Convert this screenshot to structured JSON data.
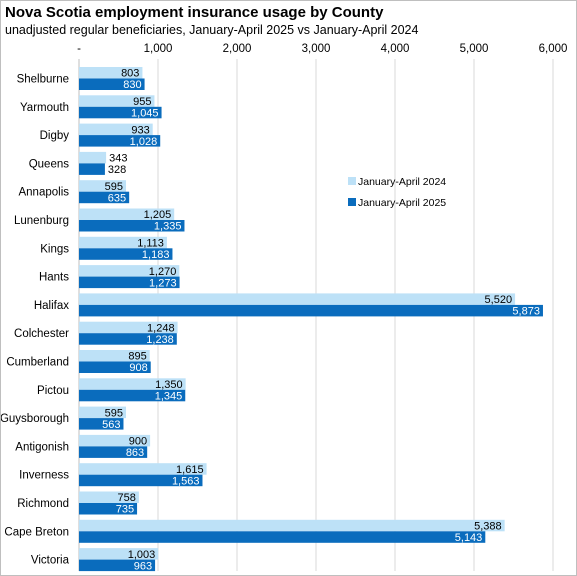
{
  "colors": {
    "series_2024": "#bde1f7",
    "series_2025": "#0a6cbd",
    "grid": "#d9d9d9",
    "label_on_dark": "#ffffff",
    "label_on_light": "#000000"
  },
  "chart_data": {
    "type": "bar",
    "orientation": "horizontal",
    "title": "Nova Scotia employment insurance usage by County",
    "subtitle": "unadjusted regular beneficiaries, January-April 2025 vs January-April 2024",
    "categories": [
      "Shelburne",
      "Yarmouth",
      "Digby",
      "Queens",
      "Annapolis",
      "Lunenburg",
      "Kings",
      "Hants",
      "Halifax",
      "Colchester",
      "Cumberland",
      "Pictou",
      "Guysborough",
      "Antigonish",
      "Inverness",
      "Richmond",
      "Cape Breton",
      "Victoria"
    ],
    "series": [
      {
        "name": "January-April 2024",
        "values": [
          803,
          955,
          933,
          343,
          595,
          1205,
          1113,
          1270,
          5520,
          1248,
          895,
          1350,
          595,
          900,
          1615,
          758,
          5388,
          1003
        ],
        "labels": [
          "803",
          "955",
          "933",
          "343",
          "595",
          "1,205",
          "1,113",
          "1,270",
          "5,520",
          "1,248",
          "895",
          "1,350",
          "595",
          "900",
          "1,615",
          "758",
          "5,388",
          "1,003"
        ]
      },
      {
        "name": "January-April 2025",
        "values": [
          830,
          1045,
          1028,
          328,
          635,
          1335,
          1183,
          1273,
          5873,
          1238,
          908,
          1345,
          563,
          863,
          1563,
          735,
          5143,
          963
        ],
        "labels": [
          "830",
          "1,045",
          "1,028",
          "328",
          "635",
          "1,335",
          "1,183",
          "1,273",
          "5,873",
          "1,238",
          "908",
          "1,345",
          "563",
          "863",
          "1,563",
          "735",
          "5,143",
          "963"
        ]
      }
    ],
    "x_ticks": [
      0,
      1000,
      2000,
      3000,
      4000,
      5000,
      6000
    ],
    "x_tick_labels": [
      "-",
      "1,000",
      "2,000",
      "3,000",
      "4,000",
      "5,000",
      "6,000"
    ],
    "xlim": [
      0,
      6000
    ],
    "axis_position": "top",
    "grid": true,
    "legend": "right"
  }
}
